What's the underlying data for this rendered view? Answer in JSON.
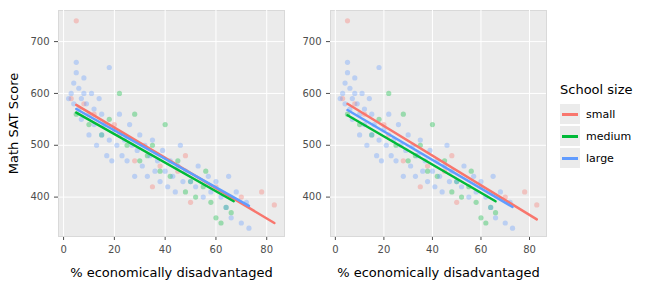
{
  "chart_data": [
    {
      "type": "scatter",
      "x_label": "% economically disadvantaged",
      "y_label": "Math SAT Score",
      "xlim": [
        -2,
        87
      ],
      "xticks": [
        0,
        20,
        40,
        60,
        80
      ],
      "ylim": [
        324,
        760
      ],
      "yticks": [
        400,
        500,
        600,
        700
      ],
      "grid": true,
      "series": [
        {
          "name": "small",
          "color": "#F8766D",
          "x": [
            5,
            3,
            8,
            12,
            20,
            28,
            35,
            38,
            48,
            50,
            60,
            70,
            78,
            83,
            45,
            22
          ],
          "values": [
            740,
            590,
            580,
            560,
            540,
            470,
            420,
            460,
            480,
            390,
            420,
            400,
            410,
            385,
            450,
            520
          ],
          "fit": {
            "x": [
              5,
              83
            ],
            "values": [
              578,
              350
            ]
          }
        },
        {
          "name": "medium",
          "color": "#00BA38",
          "x": [
            5,
            10,
            15,
            18,
            22,
            25,
            28,
            30,
            33,
            38,
            42,
            45,
            50,
            52,
            55,
            58,
            60,
            62,
            64,
            66,
            40,
            48,
            35,
            56
          ],
          "values": [
            560,
            540,
            520,
            550,
            600,
            500,
            560,
            470,
            480,
            450,
            440,
            470,
            430,
            400,
            420,
            390,
            360,
            350,
            380,
            370,
            540,
            410,
            500,
            450
          ],
          "fit": {
            "x": [
              5,
              67
            ],
            "values": [
              563,
              392
            ]
          }
        },
        {
          "name": "large",
          "color": "#619CFF",
          "x": [
            2,
            3,
            4,
            4,
            5,
            5,
            6,
            6,
            7,
            7,
            8,
            8,
            9,
            10,
            10,
            11,
            12,
            12,
            13,
            14,
            15,
            15,
            16,
            17,
            18,
            18,
            19,
            20,
            21,
            22,
            23,
            24,
            25,
            26,
            27,
            28,
            29,
            30,
            31,
            32,
            33,
            34,
            35,
            36,
            37,
            38,
            39,
            40,
            41,
            42,
            43,
            44,
            45,
            46,
            47,
            48,
            50,
            52,
            53,
            55,
            57,
            58,
            60,
            62,
            64,
            65,
            68,
            70,
            72,
            73,
            66
          ],
          "values": [
            590,
            600,
            620,
            580,
            660,
            640,
            610,
            570,
            590,
            550,
            630,
            600,
            580,
            560,
            520,
            600,
            570,
            540,
            500,
            590,
            560,
            520,
            540,
            480,
            650,
            510,
            470,
            530,
            500,
            560,
            480,
            510,
            470,
            540,
            500,
            440,
            490,
            520,
            460,
            500,
            440,
            480,
            510,
            450,
            470,
            430,
            490,
            450,
            420,
            470,
            440,
            410,
            460,
            500,
            430,
            450,
            430,
            420,
            460,
            400,
            440,
            410,
            430,
            400,
            380,
            440,
            410,
            350,
            390,
            340,
            360
          ],
          "fit": {
            "x": [
              5,
              73
            ],
            "values": [
              570,
              383
            ]
          }
        }
      ]
    },
    {
      "type": "scatter",
      "x_label": "% economically disadvantaged",
      "xlim": [
        -2,
        87
      ],
      "xticks": [
        0,
        20,
        40,
        60,
        80
      ],
      "ylim": [
        324,
        760
      ],
      "yticks": [
        400,
        500,
        600,
        700
      ],
      "grid": true,
      "legend": "right",
      "legend_title": "School size",
      "series": [
        {
          "name": "small",
          "color": "#F8766D",
          "x": [
            5,
            3,
            8,
            12,
            20,
            28,
            35,
            38,
            48,
            50,
            60,
            70,
            78,
            83,
            45,
            22
          ],
          "values": [
            740,
            590,
            580,
            560,
            540,
            470,
            420,
            460,
            480,
            390,
            420,
            400,
            410,
            385,
            450,
            520
          ],
          "fit": {
            "x": [
              5,
              83
            ],
            "values": [
              580,
              357
            ]
          }
        },
        {
          "name": "medium",
          "color": "#00BA38",
          "x": [
            5,
            10,
            15,
            18,
            22,
            25,
            28,
            30,
            33,
            38,
            42,
            45,
            50,
            52,
            55,
            58,
            60,
            62,
            64,
            66,
            40,
            48,
            35,
            56
          ],
          "values": [
            560,
            540,
            520,
            550,
            600,
            500,
            560,
            470,
            480,
            450,
            440,
            470,
            430,
            400,
            420,
            390,
            360,
            350,
            380,
            370,
            540,
            410,
            500,
            450
          ],
          "fit": {
            "x": [
              5,
              66
            ],
            "values": [
              558,
              392
            ]
          }
        },
        {
          "name": "large",
          "color": "#619CFF",
          "x": [
            2,
            3,
            4,
            4,
            5,
            5,
            6,
            6,
            7,
            7,
            8,
            8,
            9,
            10,
            10,
            11,
            12,
            12,
            13,
            14,
            15,
            15,
            16,
            17,
            18,
            18,
            19,
            20,
            21,
            22,
            23,
            24,
            25,
            26,
            27,
            28,
            29,
            30,
            31,
            32,
            33,
            34,
            35,
            36,
            37,
            38,
            39,
            40,
            41,
            42,
            43,
            44,
            45,
            46,
            47,
            48,
            50,
            52,
            53,
            55,
            57,
            58,
            60,
            62,
            64,
            65,
            68,
            70,
            72,
            73,
            66
          ],
          "values": [
            590,
            600,
            620,
            580,
            660,
            640,
            610,
            570,
            590,
            550,
            630,
            600,
            580,
            560,
            520,
            600,
            570,
            540,
            500,
            590,
            560,
            520,
            540,
            480,
            650,
            510,
            470,
            530,
            500,
            560,
            480,
            510,
            470,
            540,
            500,
            440,
            490,
            520,
            460,
            500,
            440,
            480,
            510,
            450,
            470,
            430,
            490,
            450,
            420,
            470,
            440,
            410,
            460,
            500,
            430,
            450,
            430,
            420,
            460,
            400,
            440,
            410,
            430,
            400,
            380,
            440,
            410,
            350,
            390,
            340,
            360
          ],
          "fit": {
            "x": [
              5,
              73
            ],
            "values": [
              568,
              381
            ]
          }
        }
      ]
    }
  ]
}
